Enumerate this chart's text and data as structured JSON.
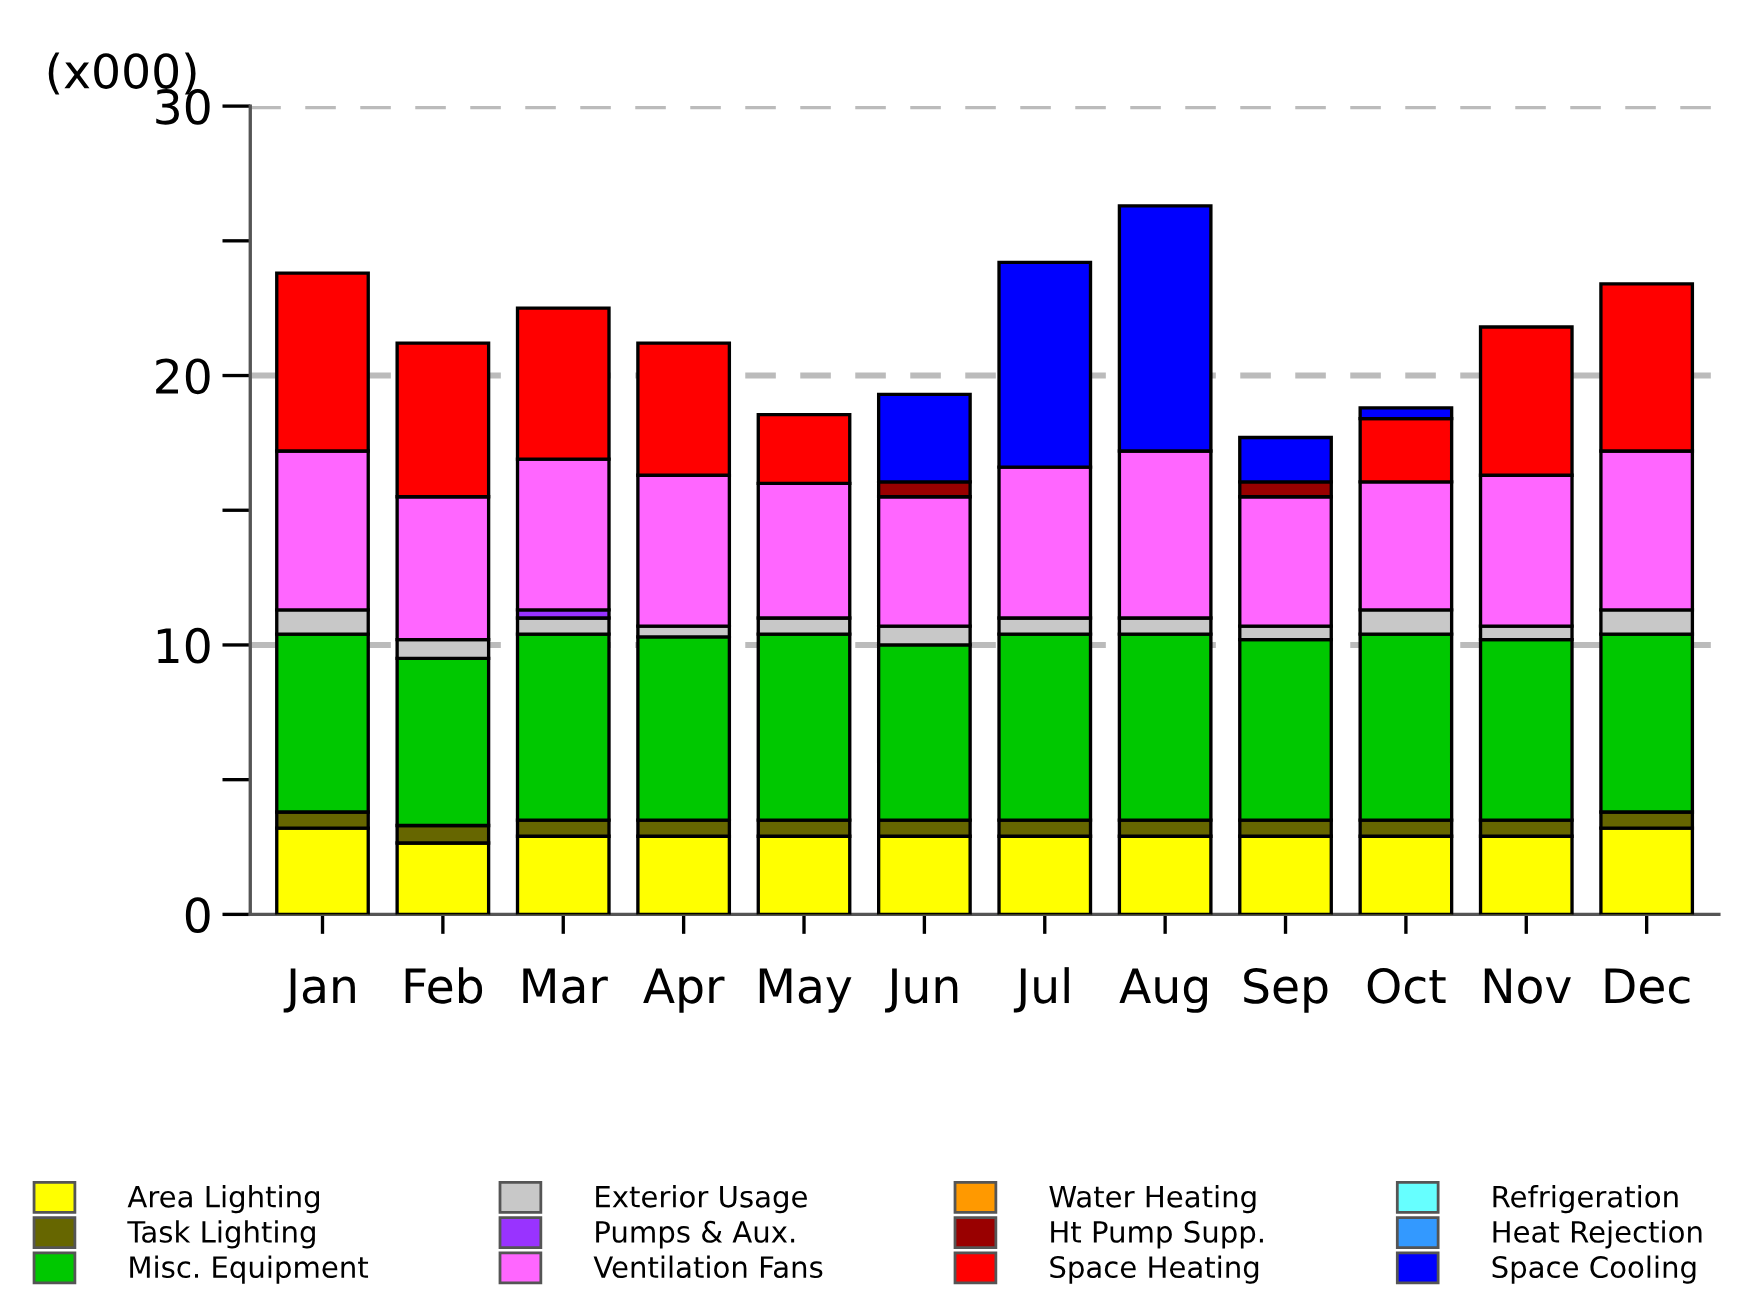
{
  "chart_data": {
    "type": "bar",
    "stacked": true,
    "ylabel": "(x000)",
    "categories": [
      "Jan",
      "Feb",
      "Mar",
      "Apr",
      "May",
      "Jun",
      "Jul",
      "Aug",
      "Sep",
      "Oct",
      "Nov",
      "Dec"
    ],
    "series": [
      {
        "name": "Area Lighting",
        "color": "#ffff00",
        "values": [
          3.2,
          2.65,
          2.9,
          2.9,
          2.9,
          2.9,
          2.9,
          2.9,
          2.9,
          2.9,
          2.9,
          3.2
        ]
      },
      {
        "name": "Task Lighting",
        "color": "#666600",
        "values": [
          0.6,
          0.65,
          0.6,
          0.6,
          0.6,
          0.6,
          0.6,
          0.6,
          0.6,
          0.6,
          0.6,
          0.6
        ]
      },
      {
        "name": "Misc. Equipment",
        "color": "#00c800",
        "values": [
          6.6,
          6.2,
          6.9,
          6.8,
          6.9,
          6.5,
          6.9,
          6.9,
          6.7,
          6.9,
          6.7,
          6.6
        ]
      },
      {
        "name": "Exterior Usage",
        "color": "#c8c8c8",
        "values": [
          0.9,
          0.7,
          0.6,
          0.4,
          0.6,
          0.7,
          0.6,
          0.6,
          0.5,
          0.9,
          0.5,
          0.9
        ]
      },
      {
        "name": "Pumps & Aux.",
        "color": "#9933ff",
        "values": [
          0,
          0,
          0.3,
          0,
          0,
          0,
          0,
          0,
          0,
          0,
          0,
          0
        ]
      },
      {
        "name": "Ventilation Fans",
        "color": "#ff66ff",
        "values": [
          5.9,
          5.3,
          5.6,
          5.6,
          5.0,
          4.8,
          5.6,
          6.2,
          4.8,
          4.75,
          5.6,
          5.9
        ]
      },
      {
        "name": "Water Heating",
        "color": "#ff9900",
        "values": [
          0,
          0,
          0,
          0,
          0,
          0,
          0,
          0,
          0,
          0,
          0,
          0
        ]
      },
      {
        "name": "Ht Pump Supp.",
        "color": "#990000",
        "values": [
          0,
          0,
          0,
          0,
          0,
          0.55,
          0,
          0,
          0.55,
          0,
          0,
          0
        ]
      },
      {
        "name": "Space Heating",
        "color": "#ff0000",
        "values": [
          6.6,
          5.7,
          5.6,
          4.9,
          2.55,
          0,
          0,
          0,
          0,
          2.35,
          5.5,
          6.2
        ]
      },
      {
        "name": "Refrigeration",
        "color": "#66ffff",
        "values": [
          0,
          0,
          0,
          0,
          0,
          0,
          0,
          0,
          0,
          0,
          0,
          0
        ]
      },
      {
        "name": "Heat Rejection",
        "color": "#3399ff",
        "values": [
          0,
          0,
          0,
          0,
          0,
          0,
          0,
          0,
          0,
          0,
          0,
          0
        ]
      },
      {
        "name": "Space Cooling",
        "color": "#0000ff",
        "values": [
          0,
          0,
          0,
          0,
          0,
          3.25,
          7.6,
          9.1,
          1.65,
          0.4,
          0,
          0
        ]
      }
    ],
    "ylim": [
      0,
      30
    ],
    "yticks": [
      0,
      {
        "value": 5,
        "label": null
      },
      10,
      {
        "value": 15,
        "label": null
      },
      20,
      {
        "value": 25,
        "label": null
      },
      30
    ],
    "grid": "y",
    "legend": "bottom"
  }
}
